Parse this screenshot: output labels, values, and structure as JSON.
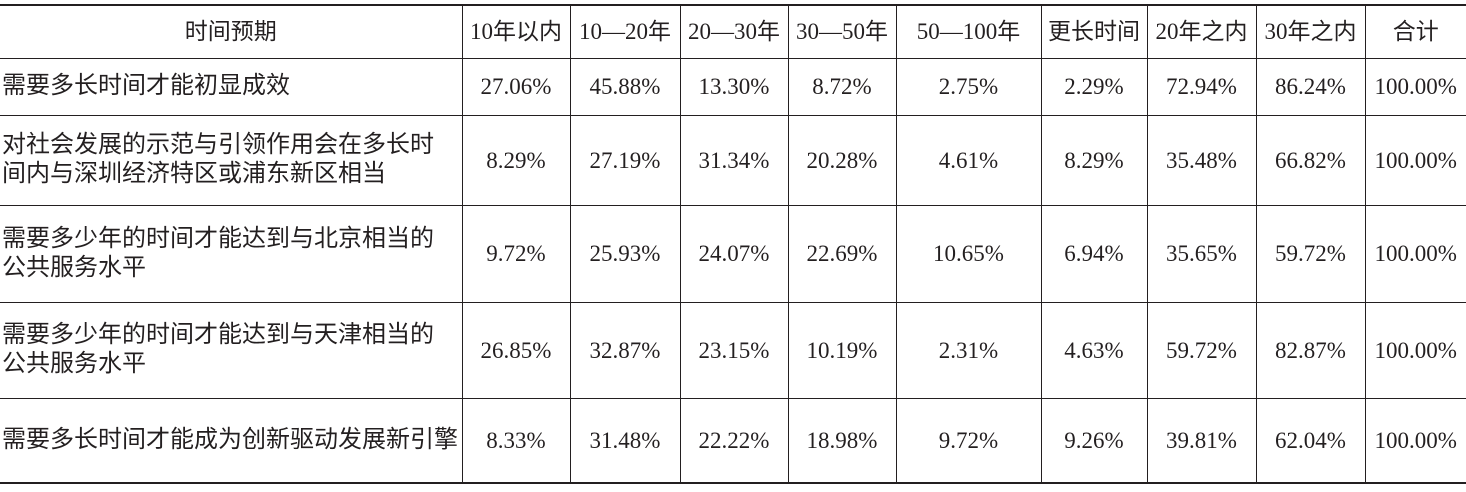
{
  "table": {
    "header": [
      "时间预期",
      "10年以内",
      "10—20年",
      "20—30年",
      "30—50年",
      "50—100年",
      "更长时间",
      "20年之内",
      "30年之内",
      "合计"
    ],
    "rows": [
      [
        [
          "需要多长时间才能初显成效"
        ],
        "27.06%",
        "45.88%",
        "13.30%",
        "8.72%",
        "2.75%",
        "2.29%",
        "72.94%",
        "86.24%",
        "100.00%"
      ],
      [
        [
          "对社会发展的示范与引领作用会在多长时",
          "间内与深圳经济特区或浦东新区相当"
        ],
        "8.29%",
        "27.19%",
        "31.34%",
        "20.28%",
        "4.61%",
        "8.29%",
        "35.48%",
        "66.82%",
        "100.00%"
      ],
      [
        [
          "需要多少年的时间才能达到与北京相当的",
          "公共服务水平"
        ],
        "9.72%",
        "25.93%",
        "24.07%",
        "22.69%",
        "10.65%",
        "6.94%",
        "35.65%",
        "59.72%",
        "100.00%"
      ],
      [
        [
          "需要多少年的时间才能达到与天津相当的",
          "公共服务水平"
        ],
        "26.85%",
        "32.87%",
        "23.15%",
        "10.19%",
        "2.31%",
        "4.63%",
        "59.72%",
        "82.87%",
        "100.00%"
      ],
      [
        [
          "需要多长时间才能成为创新驱动发展新引擎"
        ],
        "8.33%",
        "31.48%",
        "22.22%",
        "18.98%",
        "9.72%",
        "9.26%",
        "39.81%",
        "62.04%",
        "100.00%"
      ]
    ]
  }
}
